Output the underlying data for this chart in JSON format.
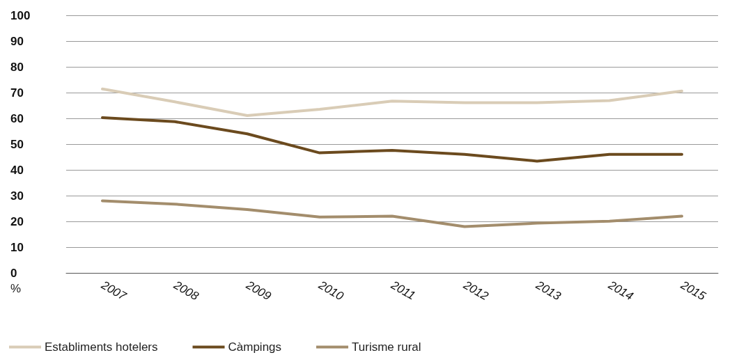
{
  "chart_data": {
    "type": "line",
    "ylabel": "%",
    "categories": [
      "2007",
      "2008",
      "2009",
      "2010",
      "2011",
      "2012",
      "2013",
      "2014",
      "2015"
    ],
    "series": [
      {
        "name": "Establiments hotelers",
        "color": "#d9ccb6",
        "values": [
          71.4,
          66.4,
          61.1,
          63.5,
          66.7,
          66.1,
          66.1,
          66.9,
          70.6
        ]
      },
      {
        "name": "Càmpings",
        "color": "#6b4a1e",
        "values": [
          60.3,
          58.7,
          54,
          46.6,
          47.6,
          46,
          43.4,
          46,
          46
        ]
      },
      {
        "name": "Turisme rural",
        "color": "#a38d6c",
        "values": [
          28,
          26.7,
          24.6,
          21.7,
          22,
          18,
          19.3,
          20.1,
          22
        ]
      }
    ],
    "ylim": [
      0,
      100
    ],
    "yticks": [
      0,
      10,
      20,
      30,
      40,
      50,
      60,
      70,
      80,
      90,
      100
    ],
    "grid": "y",
    "legend": "bottom left",
    "marker": "none",
    "line_style": "solid"
  }
}
